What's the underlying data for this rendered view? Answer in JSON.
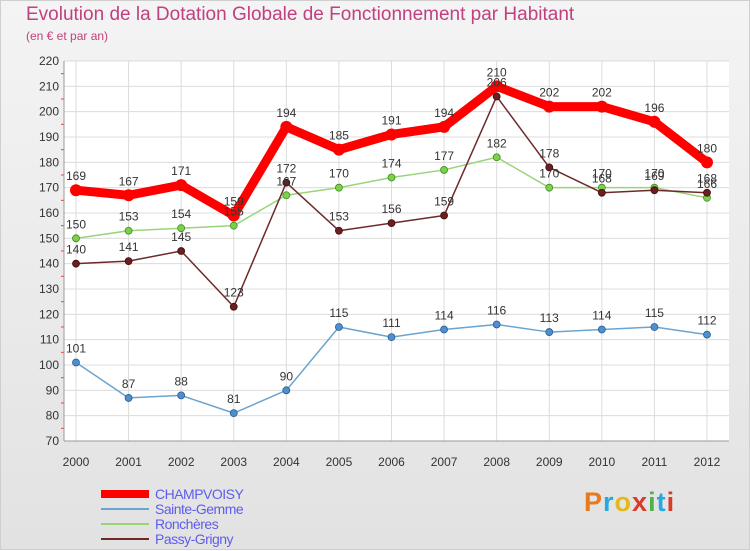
{
  "header": {
    "title": "Evolution de la Dotation Globale de Fonctionnement par Habitant",
    "subtitle": "(en € et par an)"
  },
  "logo": {
    "text": "Proxiti",
    "colors": [
      "#e87a1e",
      "#27a8df",
      "#e5b91a",
      "#d83b26",
      "#4fb24a",
      "#27a8df",
      "#d83b26"
    ]
  },
  "chart_data": {
    "type": "line",
    "title": "Evolution de la Dotation Globale de Fonctionnement par Habitant",
    "subtitle": "(en € et par an)",
    "x": [
      "2000",
      "2001",
      "2002",
      "2003",
      "2004",
      "2005",
      "2006",
      "2007",
      "2008",
      "2009",
      "2010",
      "2011",
      "2012"
    ],
    "yticks": [
      70,
      80,
      90,
      100,
      110,
      120,
      130,
      140,
      150,
      160,
      170,
      180,
      190,
      200,
      210,
      220
    ],
    "ylim": [
      70,
      220
    ],
    "grid": true,
    "legend_position": "bottom-left",
    "series": [
      {
        "name": "CHAMPVOISY",
        "color": "#ff0000",
        "values": [
          169,
          167,
          171,
          159,
          194,
          185,
          191,
          194,
          210,
          202,
          202,
          196,
          180
        ]
      },
      {
        "name": "Sainte-Gemme",
        "color": "#6aa4d0",
        "values": [
          101,
          87,
          88,
          81,
          90,
          115,
          111,
          114,
          116,
          113,
          114,
          115,
          112
        ]
      },
      {
        "name": "Ronchères",
        "color": "#9ad47a",
        "values": [
          150,
          153,
          154,
          155,
          167,
          170,
          174,
          177,
          182,
          170,
          170,
          170,
          166
        ]
      },
      {
        "name": "Passy-Grigny",
        "color": "#6e2a2a",
        "values": [
          140,
          141,
          145,
          123,
          172,
          153,
          156,
          159,
          206,
          178,
          168,
          169,
          168
        ]
      }
    ]
  }
}
